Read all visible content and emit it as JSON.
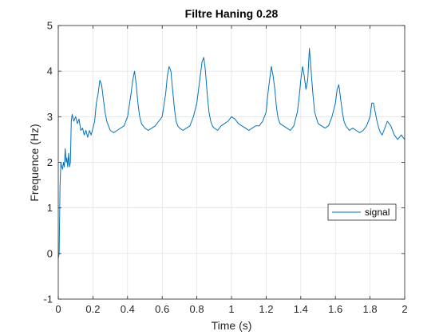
{
  "chart_data": {
    "type": "line",
    "title": "Filtre Haning 0.28",
    "xlabel": "Time (s)",
    "ylabel": "Frequence (Hz)",
    "xlim": [
      0,
      2
    ],
    "ylim": [
      -1,
      5
    ],
    "xticks": [
      0,
      0.2,
      0.4,
      0.6,
      0.8,
      1,
      1.2,
      1.4,
      1.6,
      1.8,
      2
    ],
    "xtick_labels": [
      "0",
      "0.2",
      "0.4",
      "0.6",
      "0.8",
      "1",
      "1.2",
      "1.4",
      "1.6",
      "1.8",
      "2"
    ],
    "yticks": [
      -1,
      0,
      1,
      2,
      3,
      4,
      5
    ],
    "ytick_labels": [
      "-1",
      "0",
      "1",
      "2",
      "3",
      "4",
      "5"
    ],
    "grid": true,
    "legend_position": "right",
    "series": [
      {
        "name": "signal",
        "color": "#0072BD",
        "x": [
          0,
          0.005,
          0.01,
          0.015,
          0.02,
          0.025,
          0.03,
          0.035,
          0.04,
          0.045,
          0.05,
          0.055,
          0.06,
          0.065,
          0.07,
          0.075,
          0.08,
          0.09,
          0.1,
          0.11,
          0.12,
          0.13,
          0.14,
          0.15,
          0.16,
          0.17,
          0.18,
          0.19,
          0.2,
          0.21,
          0.22,
          0.23,
          0.24,
          0.25,
          0.26,
          0.27,
          0.28,
          0.29,
          0.3,
          0.32,
          0.34,
          0.36,
          0.38,
          0.4,
          0.42,
          0.43,
          0.44,
          0.45,
          0.46,
          0.47,
          0.48,
          0.49,
          0.5,
          0.52,
          0.54,
          0.56,
          0.58,
          0.6,
          0.62,
          0.63,
          0.64,
          0.65,
          0.66,
          0.67,
          0.68,
          0.69,
          0.7,
          0.72,
          0.74,
          0.76,
          0.78,
          0.8,
          0.82,
          0.83,
          0.84,
          0.85,
          0.86,
          0.87,
          0.88,
          0.89,
          0.9,
          0.92,
          0.94,
          0.96,
          0.98,
          1.0,
          1.02,
          1.04,
          1.06,
          1.08,
          1.1,
          1.12,
          1.14,
          1.16,
          1.18,
          1.2,
          1.21,
          1.22,
          1.23,
          1.24,
          1.25,
          1.26,
          1.27,
          1.28,
          1.3,
          1.32,
          1.34,
          1.36,
          1.38,
          1.39,
          1.4,
          1.41,
          1.42,
          1.43,
          1.44,
          1.45,
          1.46,
          1.47,
          1.48,
          1.5,
          1.52,
          1.54,
          1.56,
          1.58,
          1.6,
          1.61,
          1.62,
          1.63,
          1.64,
          1.65,
          1.66,
          1.67,
          1.68,
          1.7,
          1.72,
          1.74,
          1.76,
          1.78,
          1.8,
          1.81,
          1.82,
          1.83,
          1.84,
          1.85,
          1.86,
          1.87,
          1.88,
          1.9,
          1.92,
          1.94,
          1.96,
          1.98,
          2.0
        ],
        "y": [
          -0.1,
          0.0,
          1.5,
          2.0,
          1.9,
          1.85,
          2.0,
          1.9,
          2.3,
          2.0,
          2.1,
          1.9,
          2.2,
          1.9,
          2.0,
          2.9,
          3.05,
          2.9,
          3.0,
          2.85,
          2.95,
          2.7,
          2.75,
          2.6,
          2.7,
          2.55,
          2.7,
          2.6,
          2.75,
          2.9,
          3.3,
          3.5,
          3.8,
          3.7,
          3.4,
          3.1,
          2.9,
          2.8,
          2.7,
          2.65,
          2.7,
          2.75,
          2.8,
          3.0,
          3.5,
          3.8,
          4.0,
          3.7,
          3.3,
          3.0,
          2.85,
          2.8,
          2.75,
          2.7,
          2.75,
          2.8,
          2.9,
          3.0,
          3.5,
          3.9,
          4.1,
          4.0,
          3.6,
          3.2,
          2.9,
          2.8,
          2.75,
          2.7,
          2.75,
          2.8,
          3.0,
          3.3,
          3.9,
          4.2,
          4.3,
          4.0,
          3.5,
          3.1,
          2.9,
          2.8,
          2.75,
          2.7,
          2.8,
          2.85,
          2.9,
          3.0,
          2.95,
          2.85,
          2.8,
          2.75,
          2.7,
          2.75,
          2.8,
          2.8,
          2.9,
          3.1,
          3.5,
          3.8,
          4.1,
          3.9,
          3.6,
          3.2,
          2.95,
          2.85,
          2.8,
          2.75,
          2.7,
          2.8,
          3.1,
          3.4,
          3.8,
          4.1,
          3.9,
          3.6,
          3.8,
          4.5,
          4.0,
          3.5,
          3.1,
          2.85,
          2.8,
          2.75,
          2.8,
          3.0,
          3.3,
          3.6,
          3.7,
          3.4,
          3.1,
          2.9,
          2.8,
          2.75,
          2.7,
          2.75,
          2.7,
          2.65,
          2.7,
          2.8,
          3.0,
          3.3,
          3.3,
          3.1,
          2.9,
          2.75,
          2.65,
          2.6,
          2.7,
          2.9,
          2.8,
          2.6,
          2.5,
          2.6,
          2.5
        ]
      }
    ]
  }
}
